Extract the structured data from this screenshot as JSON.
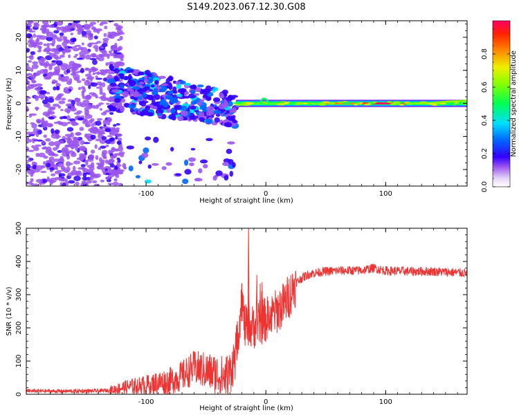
{
  "figure": {
    "title": "S149.2023.067.12.30.G08"
  },
  "chart_data": [
    {
      "type": "heatmap",
      "title": "S149.2023.067.12.30.G08",
      "xlabel": "Height of straight line (km)",
      "ylabel": "Frequency (Hz)",
      "xlim": [
        -200,
        168
      ],
      "ylim": [
        -25,
        25
      ],
      "xticks": [
        -100,
        0,
        100
      ],
      "yticks": [
        -20,
        -10,
        0,
        10,
        20
      ],
      "colorbar": {
        "label": "Normalized spectral amplitude",
        "range": [
          0,
          1
        ],
        "ticks": [
          0.0,
          0.2,
          0.4,
          0.6,
          0.8
        ],
        "tick_labels": [
          "0.0",
          "0.2",
          "0.4",
          "0.6",
          "0.8"
        ],
        "colormap": [
          "#ffffff",
          "#d0b0f0",
          "#8000ff",
          "#0000ff",
          "#00ccff",
          "#00ff60",
          "#c0ff00",
          "#ffcc00",
          "#ff4000",
          "#ff0060"
        ]
      },
      "features": [
        {
          "x_range": [
            -200,
            -130
          ],
          "y_range": [
            -25,
            25
          ],
          "amplitude": 0.15
        },
        {
          "x_range": [
            -130,
            -25
          ],
          "y_range": [
            -25,
            12
          ],
          "amplitude": 0.3
        },
        {
          "x_range": [
            -25,
            168
          ],
          "y_center": 0,
          "y_halfwidth": 1.5,
          "amplitude": 0.9
        }
      ]
    },
    {
      "type": "line",
      "xlabel": "Height of straight line (km)",
      "ylabel": "SNR (10 * v/v)",
      "xlim": [
        -200,
        168
      ],
      "ylim": [
        0,
        500
      ],
      "xticks": [
        -100,
        0,
        100
      ],
      "yticks": [
        0,
        100,
        200,
        300,
        400,
        500
      ],
      "line_color": "#ee3333",
      "series": [
        {
          "x": [
            -200,
            -170,
            -140,
            -130,
            -120,
            -110,
            -100,
            -90,
            -80,
            -70,
            -60,
            -50,
            -40,
            -35,
            -30,
            -25,
            -22,
            -20,
            -18,
            -15,
            -10,
            -5,
            0,
            5,
            10,
            15,
            20,
            25,
            30,
            35,
            40,
            50,
            60,
            80,
            90,
            100,
            120,
            140,
            168
          ],
          "y": [
            10,
            9,
            10,
            12,
            20,
            25,
            28,
            35,
            40,
            55,
            80,
            70,
            60,
            50,
            65,
            120,
            220,
            300,
            210,
            190,
            205,
            215,
            225,
            235,
            255,
            270,
            300,
            335,
            350,
            360,
            365,
            370,
            372,
            373,
            380,
            372,
            370,
            370,
            365
          ]
        }
      ],
      "annotations": [
        {
          "x": -15,
          "y": 500,
          "text": ""
        }
      ]
    }
  ]
}
